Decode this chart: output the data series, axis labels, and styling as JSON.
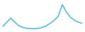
{
  "x": [
    0,
    1,
    2,
    3,
    4,
    5,
    6,
    7,
    8,
    9,
    10,
    11,
    12,
    13,
    14,
    15,
    16,
    17,
    18,
    19,
    20
  ],
  "y": [
    2.5,
    4.5,
    6.5,
    4.5,
    2.8,
    2.0,
    1.5,
    1.4,
    1.3,
    1.5,
    2.0,
    2.8,
    4.0,
    5.5,
    7.5,
    13.0,
    9.5,
    7.0,
    5.5,
    4.5,
    4.0
  ],
  "line_color": "#3aabcf",
  "line_width": 1.0,
  "background_color": "#ffffff",
  "xlim": [
    -0.3,
    20.3
  ],
  "ylim": [
    0.5,
    14.5
  ]
}
